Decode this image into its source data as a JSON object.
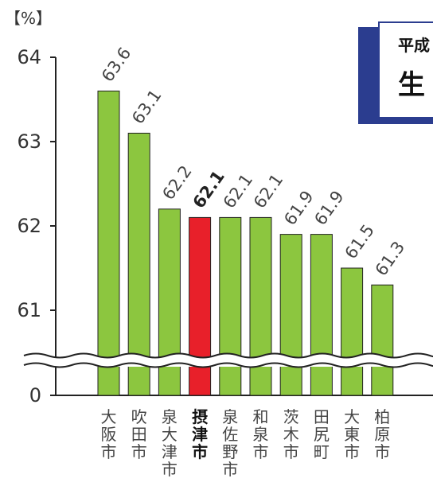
{
  "chart_data": {
    "type": "bar",
    "unit_label": "【%】",
    "title_line1": "平成",
    "title_line2": "生",
    "y_ticks": [
      "0",
      "61",
      "62",
      "63",
      "64"
    ],
    "ylim": [
      61,
      64
    ],
    "axis_break": true,
    "categories": [
      "大阪市",
      "吹田市",
      "泉大津市",
      "摂津市",
      "泉佐野市",
      "和泉市",
      "茨木市",
      "田尻町",
      "大東市",
      "柏原市"
    ],
    "values": [
      63.6,
      63.1,
      62.2,
      62.1,
      62.1,
      62.1,
      61.9,
      61.9,
      61.5,
      61.3
    ],
    "value_labels": [
      "63.6",
      "63.1",
      "62.2",
      "62.1",
      "62.1",
      "62.1",
      "61.9",
      "61.9",
      "61.5",
      "61.3"
    ],
    "highlight_index": 3,
    "colors": {
      "bar": "#8cc63f",
      "highlight": "#e8202a",
      "bar_stroke": "#222222",
      "title_box": "#2b3d8f"
    },
    "grid": false
  }
}
